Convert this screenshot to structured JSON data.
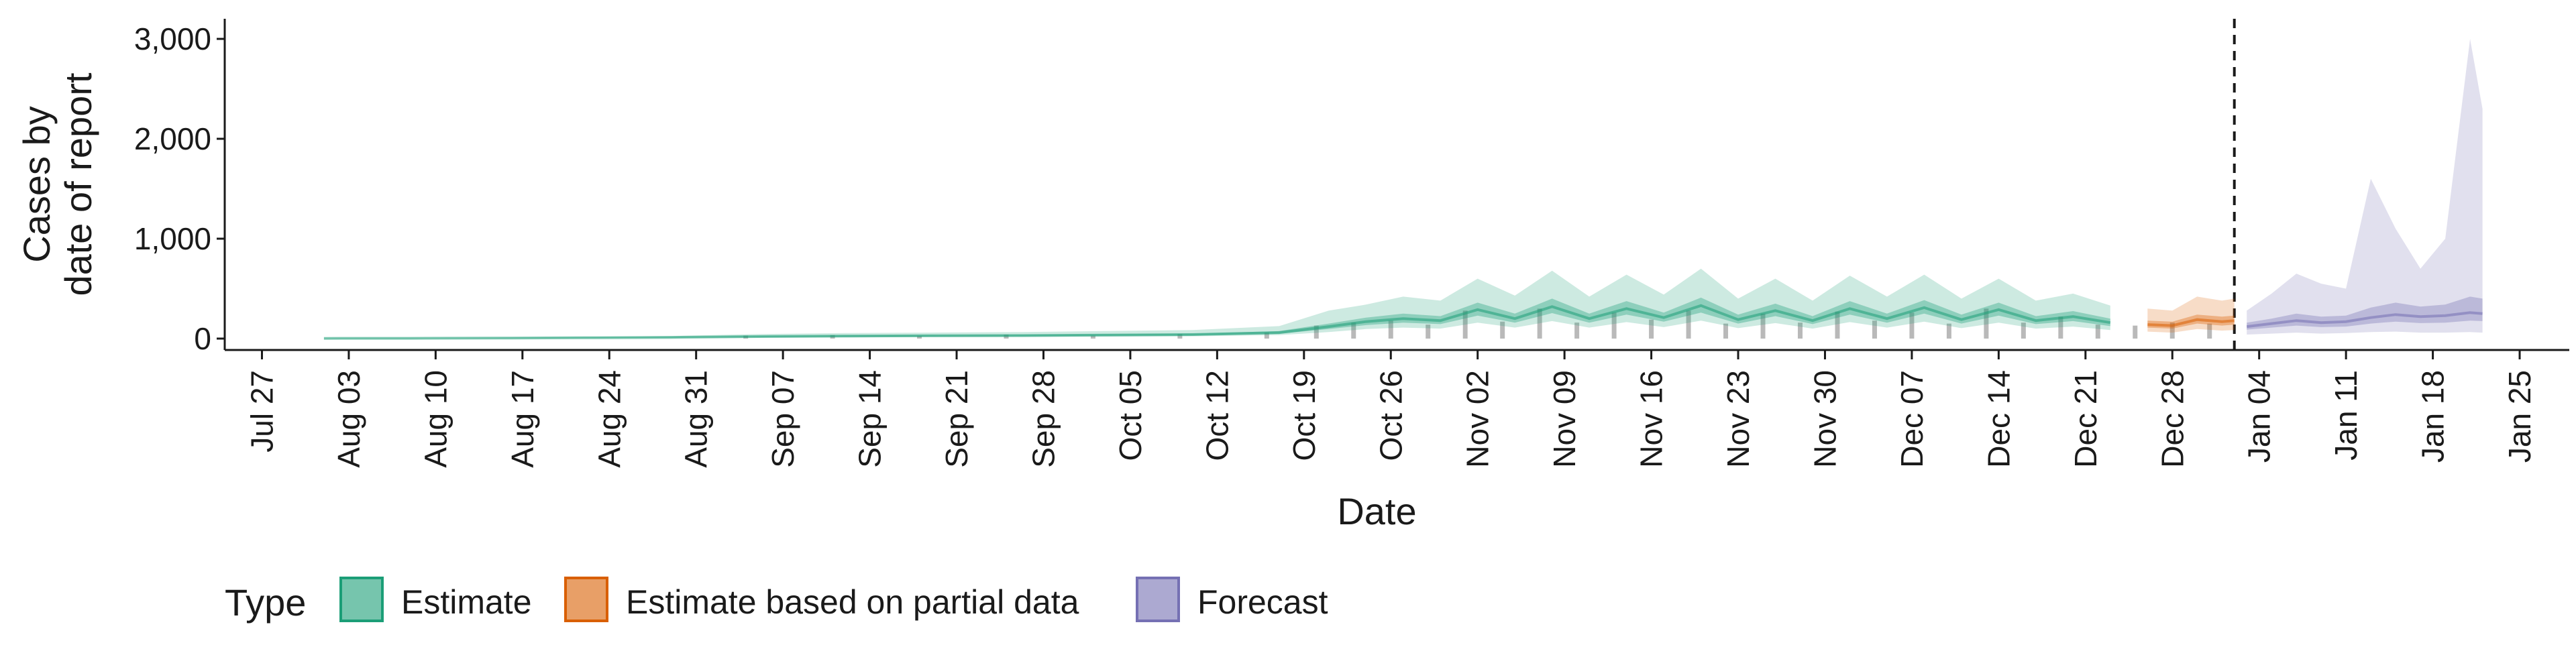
{
  "chart_data": {
    "type": "area",
    "xlabel": "Date",
    "ylabel": [
      "Cases by",
      "date of report"
    ],
    "ylim": [
      0,
      3000
    ],
    "yticks": [
      0,
      1000,
      2000,
      3000
    ],
    "ytick_labels": [
      "0",
      "1,000",
      "2,000",
      "3,000"
    ],
    "xlim": [
      "2020-07-24",
      "2021-01-29"
    ],
    "xtick_dates": [
      "2020-07-27",
      "2020-08-03",
      "2020-08-10",
      "2020-08-17",
      "2020-08-24",
      "2020-08-31",
      "2020-09-07",
      "2020-09-14",
      "2020-09-21",
      "2020-09-28",
      "2020-10-05",
      "2020-10-12",
      "2020-10-19",
      "2020-10-26",
      "2020-11-02",
      "2020-11-09",
      "2020-11-16",
      "2020-11-23",
      "2020-11-30",
      "2020-12-07",
      "2020-12-14",
      "2020-12-21",
      "2020-12-28",
      "2021-01-04",
      "2021-01-11",
      "2021-01-18",
      "2021-01-25"
    ],
    "xtick_labels": [
      "Jul 27",
      "Aug 03",
      "Aug 10",
      "Aug 17",
      "Aug 24",
      "Aug 31",
      "Sep 07",
      "Sep 14",
      "Sep 21",
      "Sep 28",
      "Oct 05",
      "Oct 12",
      "Oct 19",
      "Oct 26",
      "Nov 02",
      "Nov 09",
      "Nov 16",
      "Nov 23",
      "Nov 30",
      "Dec 07",
      "Dec 14",
      "Dec 21",
      "Dec 28",
      "Jan 04",
      "Jan 11",
      "Jan 18",
      "Jan 25"
    ],
    "forecast_date": "2021-01-02",
    "grid": false,
    "legend_position": "bottom",
    "legend_title": "Type",
    "colors": {
      "Estimate": "#1b9e77",
      "Estimate based on partial data": "#d95f02",
      "Forecast": "#7570b3",
      "observed_bars": "#7f7f7f",
      "cutoff_line": "#1a1a1a"
    },
    "legend": [
      "Estimate",
      "Estimate based on partial data",
      "Forecast"
    ],
    "series": [
      {
        "name": "Estimate",
        "x": [
          "2020-08-01",
          "2020-08-08",
          "2020-08-15",
          "2020-08-22",
          "2020-08-29",
          "2020-09-05",
          "2020-09-12",
          "2020-09-19",
          "2020-09-26",
          "2020-10-03",
          "2020-10-10",
          "2020-10-17",
          "2020-10-21",
          "2020-10-24",
          "2020-10-27",
          "2020-10-30",
          "2020-11-02",
          "2020-11-05",
          "2020-11-08",
          "2020-11-11",
          "2020-11-14",
          "2020-11-17",
          "2020-11-20",
          "2020-11-23",
          "2020-11-26",
          "2020-11-29",
          "2020-12-02",
          "2020-12-05",
          "2020-12-08",
          "2020-12-11",
          "2020-12-14",
          "2020-12-17",
          "2020-12-20",
          "2020-12-23"
        ],
        "median": [
          2,
          3,
          5,
          8,
          12,
          20,
          25,
          28,
          30,
          35,
          40,
          60,
          120,
          170,
          200,
          180,
          290,
          200,
          320,
          200,
          300,
          210,
          330,
          190,
          280,
          180,
          300,
          200,
          310,
          190,
          290,
          180,
          220,
          160
        ],
        "lower_50": [
          1,
          2,
          4,
          6,
          9,
          15,
          19,
          22,
          24,
          28,
          32,
          48,
          95,
          135,
          160,
          145,
          230,
          160,
          255,
          160,
          240,
          170,
          260,
          150,
          225,
          145,
          240,
          160,
          250,
          150,
          230,
          145,
          175,
          125
        ],
        "upper_50": [
          3,
          4,
          7,
          10,
          15,
          26,
          32,
          35,
          38,
          44,
          50,
          75,
          150,
          210,
          250,
          225,
          360,
          250,
          400,
          250,
          375,
          260,
          410,
          240,
          350,
          225,
          375,
          250,
          385,
          240,
          360,
          225,
          275,
          200
        ],
        "lower_90": [
          0,
          1,
          2,
          4,
          6,
          10,
          13,
          15,
          16,
          20,
          23,
          35,
          65,
          95,
          110,
          100,
          160,
          110,
          175,
          110,
          165,
          115,
          180,
          105,
          155,
          100,
          165,
          110,
          170,
          105,
          160,
          100,
          120,
          85
        ],
        "upper_90": [
          6,
          8,
          12,
          18,
          26,
          45,
          55,
          60,
          65,
          75,
          85,
          125,
          280,
          340,
          420,
          380,
          600,
          430,
          680,
          420,
          640,
          440,
          700,
          400,
          600,
          380,
          630,
          420,
          640,
          400,
          600,
          380,
          450,
          330
        ]
      },
      {
        "name": "Estimate based on partial data",
        "x": [
          "2020-12-26",
          "2020-12-28",
          "2020-12-30",
          "2021-01-01",
          "2021-01-02"
        ],
        "median": [
          140,
          130,
          190,
          170,
          180
        ],
        "lower_50": [
          110,
          100,
          150,
          130,
          140
        ],
        "upper_50": [
          180,
          170,
          240,
          220,
          230
        ],
        "lower_90": [
          70,
          60,
          95,
          80,
          85
        ],
        "upper_90": [
          300,
          280,
          420,
          380,
          400
        ]
      },
      {
        "name": "Forecast",
        "x": [
          "2021-01-03",
          "2021-01-05",
          "2021-01-07",
          "2021-01-09",
          "2021-01-11",
          "2021-01-13",
          "2021-01-15",
          "2021-01-17",
          "2021-01-19",
          "2021-01-21",
          "2021-01-22"
        ],
        "median": [
          120,
          150,
          180,
          160,
          170,
          210,
          240,
          220,
          230,
          260,
          250
        ],
        "lower_50": [
          90,
          110,
          130,
          115,
          120,
          150,
          170,
          155,
          160,
          180,
          175
        ],
        "upper_50": [
          160,
          200,
          250,
          220,
          230,
          310,
          360,
          320,
          340,
          420,
          400
        ],
        "lower_90": [
          40,
          50,
          60,
          50,
          55,
          65,
          70,
          60,
          60,
          65,
          60
        ],
        "upper_90": [
          280,
          450,
          650,
          550,
          500,
          1600,
          1100,
          700,
          1000,
          3000,
          2300
        ]
      }
    ],
    "observed": {
      "x": [
        "2020-09-04",
        "2020-09-11",
        "2020-09-18",
        "2020-09-25",
        "2020-10-02",
        "2020-10-09",
        "2020-10-16",
        "2020-10-20",
        "2020-10-23",
        "2020-10-26",
        "2020-10-29",
        "2020-11-01",
        "2020-11-04",
        "2020-11-07",
        "2020-11-10",
        "2020-11-13",
        "2020-11-16",
        "2020-11-19",
        "2020-11-22",
        "2020-11-25",
        "2020-11-28",
        "2020-12-01",
        "2020-12-04",
        "2020-12-07",
        "2020-12-10",
        "2020-12-13",
        "2020-12-16",
        "2020-12-19",
        "2020-12-22",
        "2020-12-25",
        "2020-12-28",
        "2020-12-31"
      ],
      "values": [
        30,
        35,
        25,
        40,
        30,
        45,
        60,
        130,
        160,
        180,
        140,
        280,
        170,
        300,
        160,
        260,
        190,
        280,
        150,
        250,
        160,
        270,
        180,
        260,
        150,
        300,
        160,
        220,
        140,
        130,
        160,
        150
      ]
    }
  }
}
